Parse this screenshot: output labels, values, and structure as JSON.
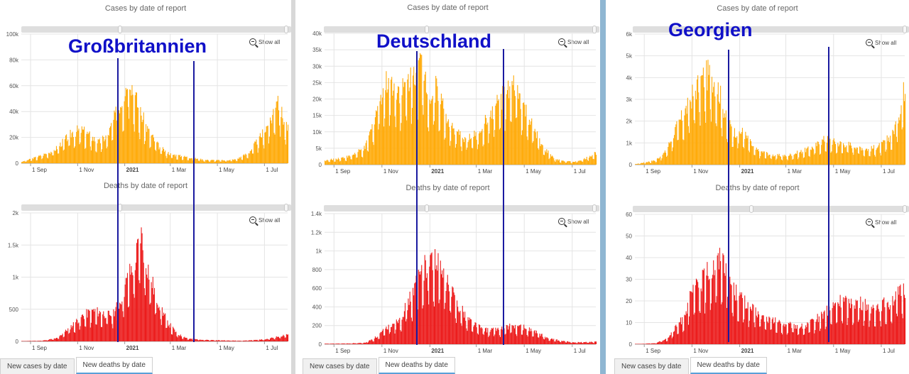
{
  "titles": {
    "cases": "Cases by date of report",
    "deaths": "Deaths by date of report"
  },
  "show_all": "Show all",
  "tabs": {
    "cases": "New cases by date",
    "deaths": "New deaths by date"
  },
  "colors": {
    "cases": "#ffab0a",
    "deaths": "#ec1c1c",
    "marker": "#1a1aa0",
    "grid": "#e4e4e4"
  },
  "icons": {
    "zoom": "zoom-out-icon",
    "grip": "scroll-grip-icon"
  },
  "x_ticks": [
    "1 Sep",
    "1 Nov",
    "2021",
    "1 Mar",
    "1 May",
    "1 Jul"
  ],
  "panels": [
    {
      "country": "Großbritannien",
      "marker_dates": [
        "2020-12-23",
        "2021-04-01"
      ],
      "cases": {
        "y_ticks": [
          "0",
          "20k",
          "40k",
          "60k",
          "80k",
          "100k"
        ],
        "ymax": 100000,
        "keypoints": [
          [
            "2020-08-20",
            1000
          ],
          [
            "2020-09-10",
            5000
          ],
          [
            "2020-10-01",
            10000
          ],
          [
            "2020-10-15",
            18000
          ],
          [
            "2020-10-25",
            24000
          ],
          [
            "2020-11-05",
            26000
          ],
          [
            "2020-11-15",
            22000
          ],
          [
            "2020-11-28",
            16000
          ],
          [
            "2020-12-10",
            22000
          ],
          [
            "2020-12-20",
            38000
          ],
          [
            "2020-12-28",
            50000
          ],
          [
            "2021-01-03",
            62000
          ],
          [
            "2021-01-05",
            76000
          ],
          [
            "2021-01-10",
            60000
          ],
          [
            "2021-01-20",
            40000
          ],
          [
            "2021-02-01",
            24000
          ],
          [
            "2021-02-15",
            12000
          ],
          [
            "2021-03-01",
            7000
          ],
          [
            "2021-03-20",
            5000
          ],
          [
            "2021-04-15",
            2500
          ],
          [
            "2021-05-10",
            2200
          ],
          [
            "2021-05-25",
            3000
          ],
          [
            "2021-06-10",
            8000
          ],
          [
            "2021-06-25",
            20000
          ],
          [
            "2021-07-10",
            35000
          ],
          [
            "2021-07-17",
            54000
          ],
          [
            "2021-07-22",
            40000
          ],
          [
            "2021-07-30",
            26000
          ]
        ]
      },
      "deaths": {
        "y_ticks": [
          "0",
          "500",
          "1k",
          "1.5k",
          "2k"
        ],
        "ymax": 2000,
        "keypoints": [
          [
            "2020-08-20",
            5
          ],
          [
            "2020-09-15",
            10
          ],
          [
            "2020-10-05",
            50
          ],
          [
            "2020-10-20",
            200
          ],
          [
            "2020-11-05",
            380
          ],
          [
            "2020-11-20",
            480
          ],
          [
            "2020-12-05",
            430
          ],
          [
            "2020-12-15",
            420
          ],
          [
            "2020-12-25",
            600
          ],
          [
            "2021-01-05",
            1000
          ],
          [
            "2021-01-15",
            1280
          ],
          [
            "2021-01-21",
            1700
          ],
          [
            "2021-01-28",
            1250
          ],
          [
            "2021-02-10",
            700
          ],
          [
            "2021-02-25",
            300
          ],
          [
            "2021-03-10",
            110
          ],
          [
            "2021-03-25",
            40
          ],
          [
            "2021-04-20",
            20
          ],
          [
            "2021-06-01",
            10
          ],
          [
            "2021-07-01",
            30
          ],
          [
            "2021-07-20",
            80
          ],
          [
            "2021-07-30",
            100
          ]
        ]
      }
    },
    {
      "country": "Deutschland",
      "marker_dates": [
        "2020-12-15",
        "2021-04-05"
      ],
      "cases": {
        "y_ticks": [
          "0",
          "5k",
          "10k",
          "15k",
          "20k",
          "25k",
          "30k",
          "35k",
          "40k"
        ],
        "ymax": 40000,
        "keypoints": [
          [
            "2020-08-20",
            1200
          ],
          [
            "2020-09-20",
            2500
          ],
          [
            "2020-10-10",
            5000
          ],
          [
            "2020-10-20",
            12000
          ],
          [
            "2020-10-30",
            22000
          ],
          [
            "2020-11-10",
            26000
          ],
          [
            "2020-11-25",
            22000
          ],
          [
            "2020-12-05",
            26000
          ],
          [
            "2020-12-18",
            31000
          ],
          [
            "2020-12-24",
            29000
          ],
          [
            "2021-01-01",
            20000
          ],
          [
            "2021-01-10",
            24000
          ],
          [
            "2021-01-20",
            15000
          ],
          [
            "2021-02-01",
            10000
          ],
          [
            "2021-02-15",
            8000
          ],
          [
            "2021-03-01",
            9000
          ],
          [
            "2021-03-15",
            14000
          ],
          [
            "2021-03-28",
            19000
          ],
          [
            "2021-04-10",
            22000
          ],
          [
            "2021-04-20",
            24000
          ],
          [
            "2021-04-25",
            20000
          ],
          [
            "2021-05-10",
            12000
          ],
          [
            "2021-05-25",
            5000
          ],
          [
            "2021-06-10",
            1500
          ],
          [
            "2021-07-01",
            800
          ],
          [
            "2021-07-15",
            1600
          ],
          [
            "2021-07-30",
            3500
          ]
        ]
      },
      "deaths": {
        "y_ticks": [
          "0",
          "200",
          "400",
          "600",
          "800",
          "1k",
          "1.2k",
          "1.4k"
        ],
        "ymax": 1400,
        "keypoints": [
          [
            "2020-08-20",
            5
          ],
          [
            "2020-09-20",
            8
          ],
          [
            "2020-10-10",
            15
          ],
          [
            "2020-10-25",
            80
          ],
          [
            "2020-11-10",
            200
          ],
          [
            "2020-11-25",
            300
          ],
          [
            "2020-12-10",
            550
          ],
          [
            "2020-12-20",
            780
          ],
          [
            "2020-12-30",
            900
          ],
          [
            "2021-01-08",
            880
          ],
          [
            "2021-01-20",
            700
          ],
          [
            "2021-02-01",
            500
          ],
          [
            "2021-02-15",
            300
          ],
          [
            "2021-03-01",
            200
          ],
          [
            "2021-03-15",
            150
          ],
          [
            "2021-04-01",
            170
          ],
          [
            "2021-04-15",
            200
          ],
          [
            "2021-05-01",
            180
          ],
          [
            "2021-05-15",
            130
          ],
          [
            "2021-06-01",
            60
          ],
          [
            "2021-07-01",
            20
          ],
          [
            "2021-07-30",
            25
          ]
        ]
      }
    },
    {
      "country": "Georgien",
      "marker_dates": [
        "2020-12-18",
        "2021-04-25"
      ],
      "cases": {
        "y_ticks": [
          "0",
          "1k",
          "2k",
          "3k",
          "4k",
          "5k",
          "6k"
        ],
        "ymax": 6000,
        "keypoints": [
          [
            "2020-08-20",
            20
          ],
          [
            "2020-09-15",
            200
          ],
          [
            "2020-09-28",
            600
          ],
          [
            "2020-10-10",
            1600
          ],
          [
            "2020-10-25",
            2600
          ],
          [
            "2020-11-05",
            3500
          ],
          [
            "2020-11-15",
            4000
          ],
          [
            "2020-11-25",
            4200
          ],
          [
            "2020-12-05",
            3400
          ],
          [
            "2020-12-15",
            2000
          ],
          [
            "2020-12-25",
            1500
          ],
          [
            "2021-01-05",
            1500
          ],
          [
            "2021-01-20",
            700
          ],
          [
            "2021-02-10",
            450
          ],
          [
            "2021-03-01",
            400
          ],
          [
            "2021-03-20",
            600
          ],
          [
            "2021-04-05",
            800
          ],
          [
            "2021-04-20",
            1200
          ],
          [
            "2021-05-05",
            1000
          ],
          [
            "2021-05-25",
            900
          ],
          [
            "2021-06-15",
            700
          ],
          [
            "2021-07-01",
            900
          ],
          [
            "2021-07-15",
            1400
          ],
          [
            "2021-07-25",
            2600
          ],
          [
            "2021-07-30",
            3500
          ]
        ]
      },
      "deaths": {
        "y_ticks": [
          "0",
          "10",
          "20",
          "30",
          "40",
          "50",
          "60"
        ],
        "ymax": 60,
        "keypoints": [
          [
            "2020-08-20",
            0
          ],
          [
            "2020-09-15",
            0.5
          ],
          [
            "2020-10-01",
            3
          ],
          [
            "2020-10-20",
            12
          ],
          [
            "2020-11-01",
            24
          ],
          [
            "2020-11-15",
            30
          ],
          [
            "2020-11-28",
            36
          ],
          [
            "2020-12-08",
            40
          ],
          [
            "2020-12-15",
            37
          ],
          [
            "2020-12-22",
            26
          ],
          [
            "2021-01-10",
            18
          ],
          [
            "2021-02-01",
            12
          ],
          [
            "2021-03-01",
            9
          ],
          [
            "2021-03-25",
            8
          ],
          [
            "2021-04-10",
            12
          ],
          [
            "2021-04-25",
            16
          ],
          [
            "2021-05-10",
            20
          ],
          [
            "2021-06-01",
            19
          ],
          [
            "2021-06-20",
            17
          ],
          [
            "2021-07-10",
            19
          ],
          [
            "2021-07-30",
            25
          ]
        ]
      }
    }
  ]
}
